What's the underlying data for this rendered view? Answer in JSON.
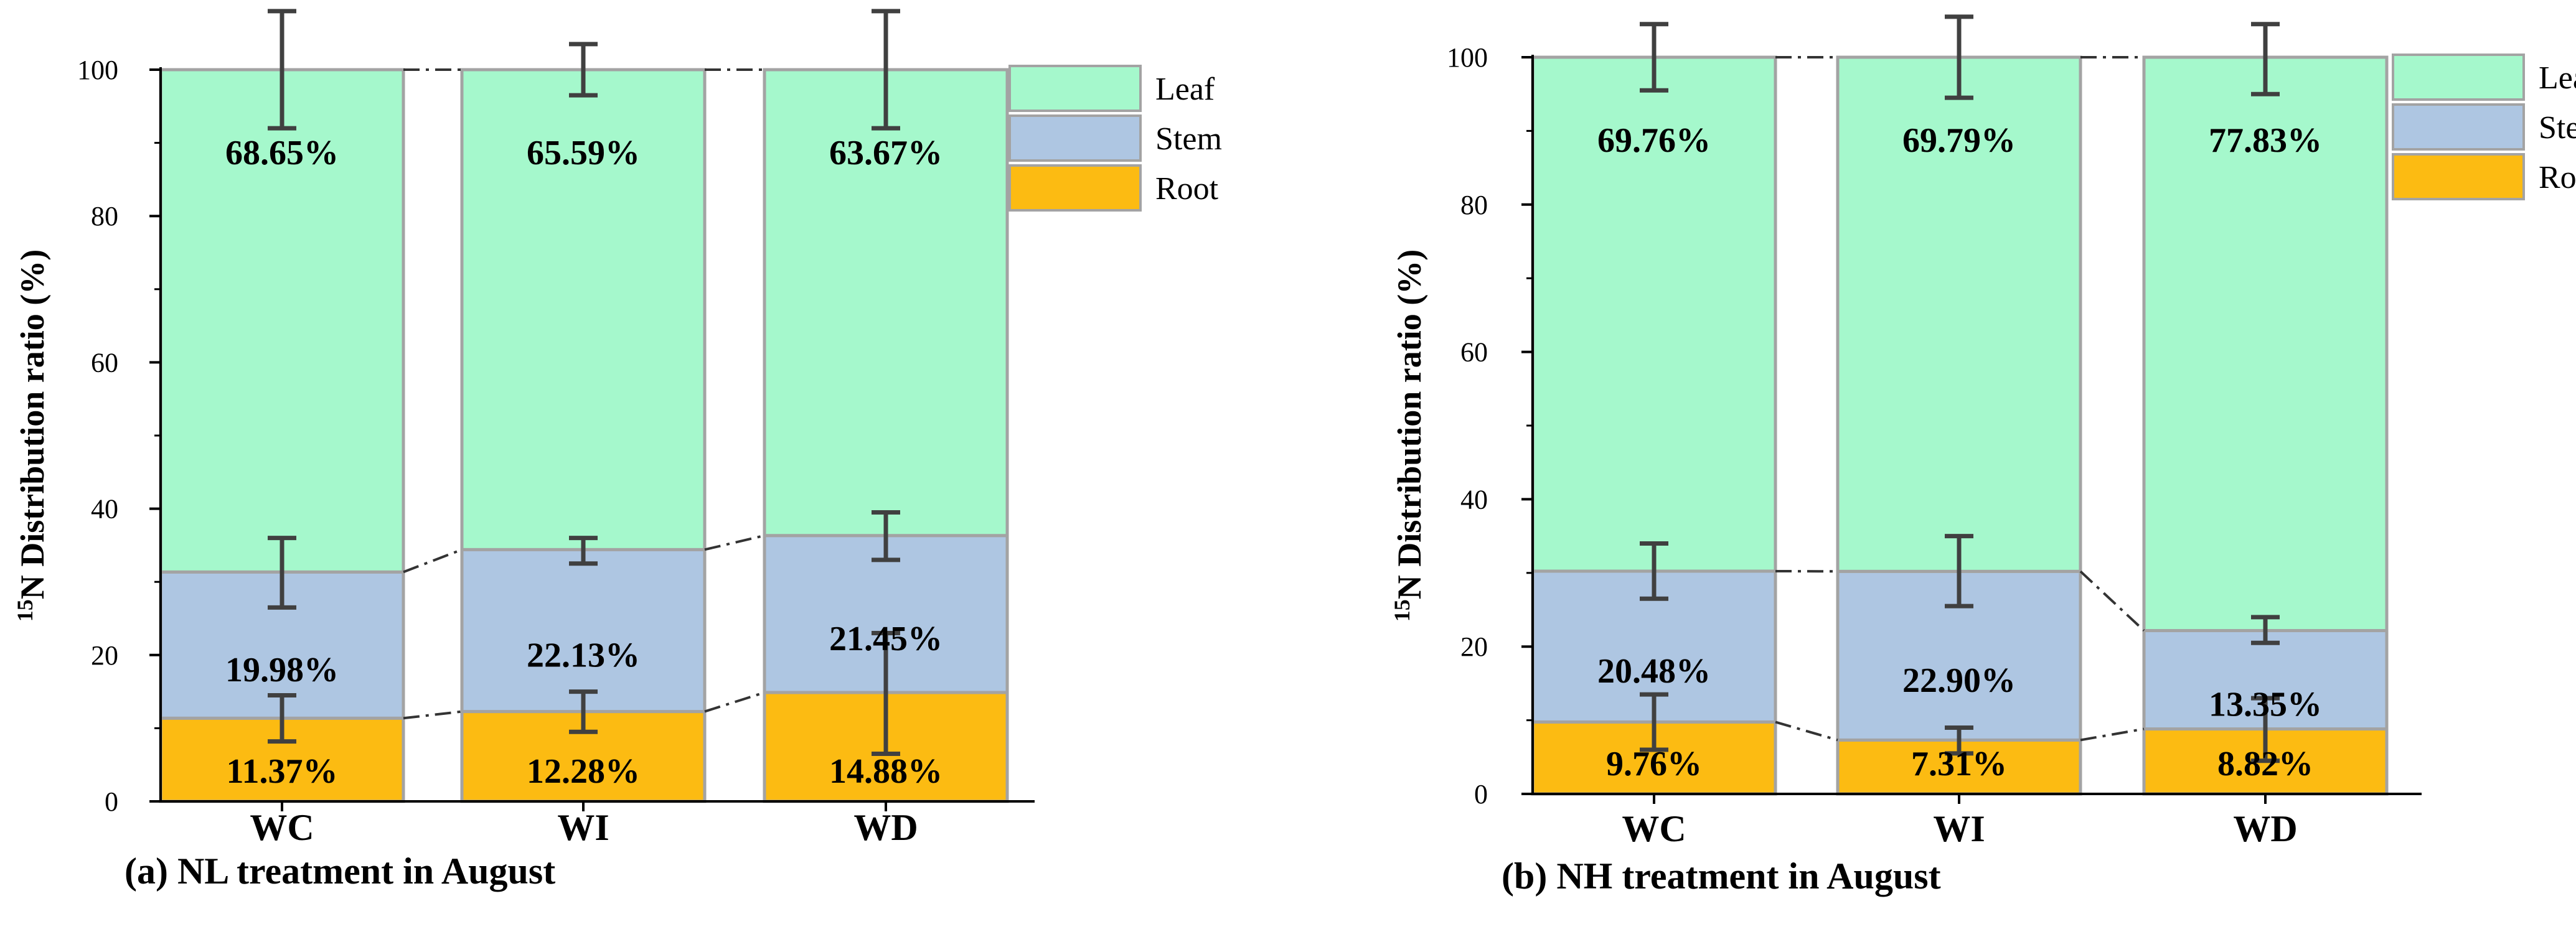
{
  "colors": {
    "Leaf": "#a5f8cc",
    "Stem": "#aec6e2",
    "Root": "#fcbb12",
    "border": "#a3a3a3",
    "error": "#404040",
    "axis": "#000000"
  },
  "chart_data": [
    {
      "type": "bar",
      "stacked": true,
      "caption": "(a) NL treatment in August",
      "ylabel_sup": "15",
      "ylabel_rest": "N Distribution ratio (%)",
      "categories": [
        "WC",
        "WI",
        "WD"
      ],
      "ylim": [
        0,
        100
      ],
      "yticks": [
        0,
        20,
        40,
        60,
        80,
        100
      ],
      "legend": [
        "Leaf",
        "Stem",
        "Root"
      ],
      "legend_position": "top-right",
      "series": [
        {
          "name": "Root",
          "values": [
            11.37,
            12.28,
            14.88
          ],
          "labels": [
            "11.37%",
            "12.28%",
            "14.88%"
          ],
          "error_low": [
            8.2,
            9.5,
            6.5
          ],
          "error_high": [
            14.5,
            15.0,
            23.0
          ]
        },
        {
          "name": "Stem",
          "values": [
            19.98,
            22.13,
            21.45
          ],
          "labels": [
            "19.98%",
            "22.13%",
            "21.45%"
          ],
          "error_low": [
            26.5,
            32.5,
            33.0
          ],
          "error_high": [
            36.0,
            36.0,
            39.5
          ]
        },
        {
          "name": "Leaf",
          "values": [
            68.65,
            65.59,
            63.67
          ],
          "labels": [
            "68.65%",
            "65.59%",
            "63.67%"
          ],
          "error_low": [
            92.0,
            96.5,
            92.0
          ],
          "error_high": [
            108.0,
            103.5,
            108.0
          ]
        }
      ]
    },
    {
      "type": "bar",
      "stacked": true,
      "caption": "(b) NH treatment in August",
      "ylabel_sup": "15",
      "ylabel_rest": "N Distribution ratio (%)",
      "categories": [
        "WC",
        "WI",
        "WD"
      ],
      "ylim": [
        0,
        100
      ],
      "yticks": [
        0,
        20,
        40,
        60,
        80,
        100
      ],
      "legend": [
        "Leaf",
        "Stem",
        "Root"
      ],
      "legend_position": "top-right",
      "series": [
        {
          "name": "Root",
          "values": [
            9.76,
            7.31,
            8.82
          ],
          "labels": [
            "9.76%",
            "7.31%",
            "8.82%"
          ],
          "error_low": [
            6.0,
            5.5,
            4.5
          ],
          "error_high": [
            13.5,
            9.0,
            13.0
          ]
        },
        {
          "name": "Stem",
          "values": [
            20.48,
            22.9,
            13.35
          ],
          "labels": [
            "20.48%",
            "22.90%",
            "13.35%"
          ],
          "error_low": [
            26.5,
            25.5,
            20.5
          ],
          "error_high": [
            34.0,
            35.0,
            24.0
          ]
        },
        {
          "name": "Leaf",
          "values": [
            69.76,
            69.79,
            77.83
          ],
          "labels": [
            "69.76%",
            "69.79%",
            "77.83%"
          ],
          "error_low": [
            95.5,
            94.5,
            95.0
          ],
          "error_high": [
            104.5,
            105.5,
            104.5
          ]
        }
      ]
    }
  ]
}
